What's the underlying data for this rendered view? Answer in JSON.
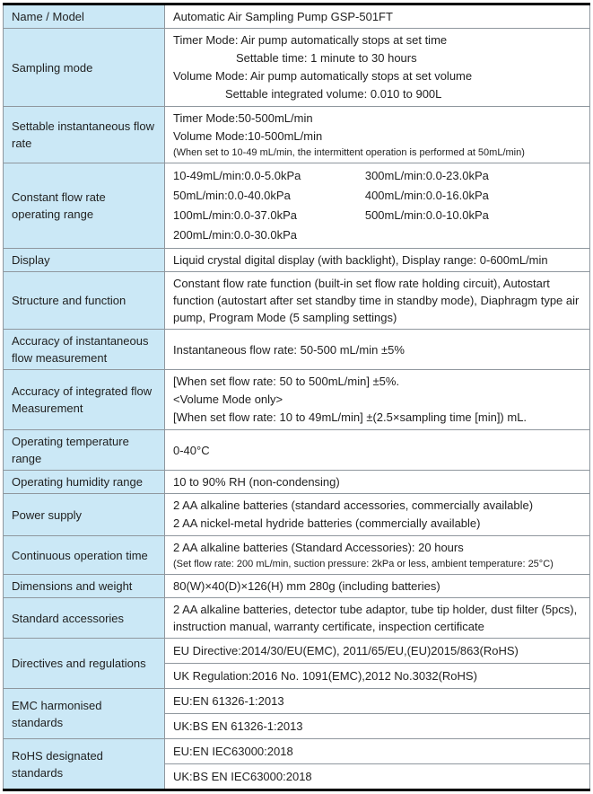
{
  "colors": {
    "label_bg": "#cbe8f6",
    "border": "#8f979e",
    "frame": "#000000"
  },
  "rows": {
    "name_model": {
      "label": "Name / Model",
      "value": "Automatic Air Sampling Pump GSP-501FT"
    },
    "sampling_mode": {
      "label": "Sampling mode",
      "l1": "Timer Mode: Air pump automatically stops at set time",
      "l2": "Settable time: 1 minute to 30 hours",
      "l3": "Volume Mode: Air pump automatically stops at set volume",
      "l4": "Settable integrated volume: 0.010 to 900L"
    },
    "inst_flow": {
      "label": "Settable instantaneous flow rate",
      "l1": "Timer Mode:50-500mL/min",
      "l2": "Volume Mode:10-500mL/min",
      "note": "(When set to 10-49 mL/min, the intermittent operation is performed at 50mL/min)"
    },
    "constant_flow": {
      "label": "Constant flow rate operating range",
      "col1": [
        "10-49mL/min:0.0-5.0kPa",
        "50mL/min:0.0-40.0kPa",
        "100mL/min:0.0-37.0kPa",
        "200mL/min:0.0-30.0kPa"
      ],
      "col2": [
        "300mL/min:0.0-23.0kPa",
        "400mL/min:0.0-16.0kPa",
        "500mL/min:0.0-10.0kPa"
      ]
    },
    "display": {
      "label": "Display",
      "value": "Liquid crystal digital display (with backlight), Display range: 0-600mL/min"
    },
    "structure": {
      "label": "Structure and function",
      "value": "Constant flow rate function (built-in set flow rate holding circuit), Autostart function (autostart after set standby time in standby mode), Diaphragm type air pump, Program Mode (5 sampling settings)"
    },
    "acc_inst": {
      "label": "Accuracy of instantaneous flow measurement",
      "value": "Instantaneous flow rate: 50-500 mL/min ±5%"
    },
    "acc_integrated": {
      "label": "Accuracy of integrated flow Measurement",
      "l1": "[When set flow rate: 50 to 500mL/min] ±5%.",
      "l2": "<Volume Mode only>",
      "l3": "[When set flow rate: 10 to 49mL/min] ±(2.5×sampling time [min]) mL."
    },
    "temperature": {
      "label": "Operating temperature range",
      "value": "0-40°C"
    },
    "humidity": {
      "label": "Operating humidity range",
      "value": "10 to 90% RH (non-condensing)"
    },
    "power": {
      "label": "Power supply",
      "l1": "2 AA alkaline batteries (standard accessories, commercially available)",
      "l2": "2 AA nickel-metal hydride batteries (commercially available)"
    },
    "continuous": {
      "label": "Continuous operation time",
      "l1": "2 AA alkaline batteries (Standard Accessories): 20 hours",
      "note": "(Set flow rate: 200 mL/min, suction pressure: 2kPa or less, ambient temperature: 25°C)"
    },
    "dimensions": {
      "label": "Dimensions and weight",
      "value": "80(W)×40(D)×126(H) mm 280g (including batteries)"
    },
    "accessories": {
      "label": "Standard accessories",
      "value": "2 AA alkaline batteries, detector tube adaptor, tube tip holder, dust filter (5pcs), instruction manual, warranty certificate, inspection certificate"
    },
    "directives": {
      "label": "Directives and regulations",
      "eu": "EU Directive:2014/30/EU(EMC), 2011/65/EU,(EU)2015/863(RoHS)",
      "uk": "UK Regulation:2016 No. 1091(EMC),2012 No.3032(RoHS)"
    },
    "emc": {
      "label": "EMC harmonised standards",
      "eu": "EU:EN 61326-1:2013",
      "uk": "UK:BS EN 61326-1:2013"
    },
    "rohs": {
      "label": "RoHS designated standards",
      "eu": "EU:EN IEC63000:2018",
      "uk": "UK:BS EN IEC63000:2018"
    }
  }
}
